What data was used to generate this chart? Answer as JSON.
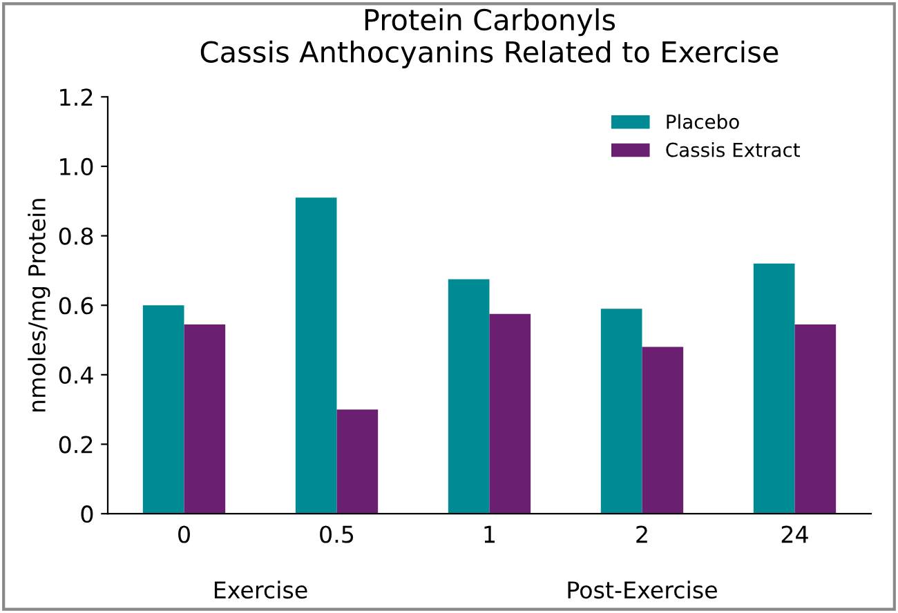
{
  "chart_data": {
    "type": "bar",
    "title": "Protein Carbonyls\nCassis Anthocyanins Related to Exercise",
    "ylabel": "nmoles/mg Protein",
    "categories": [
      "0",
      "0.5",
      "1",
      "2",
      "24"
    ],
    "series": [
      {
        "name": "Placebo",
        "color": "#008b94",
        "values": [
          0.6,
          0.91,
          0.675,
          0.59,
          0.72
        ]
      },
      {
        "name": "Cassis Extract",
        "color": "#6a1f70",
        "values": [
          0.545,
          0.3,
          0.575,
          0.48,
          0.545
        ]
      }
    ],
    "ylim": [
      0,
      1.2
    ],
    "yticks": [
      0,
      {
        "value": 0.2,
        "label": "0.2"
      },
      {
        "value": 0.4,
        "label": "0.4"
      },
      {
        "value": 0.6,
        "label": "0.6"
      },
      {
        "value": 0.8,
        "label": "0.8"
      },
      {
        "value": 1.0,
        "label": "1.0"
      },
      {
        "value": 1.2,
        "label": "1.2"
      }
    ],
    "annotations": [
      "Exercise",
      "Post-Exercise"
    ],
    "legend": "top right",
    "grid": false
  }
}
